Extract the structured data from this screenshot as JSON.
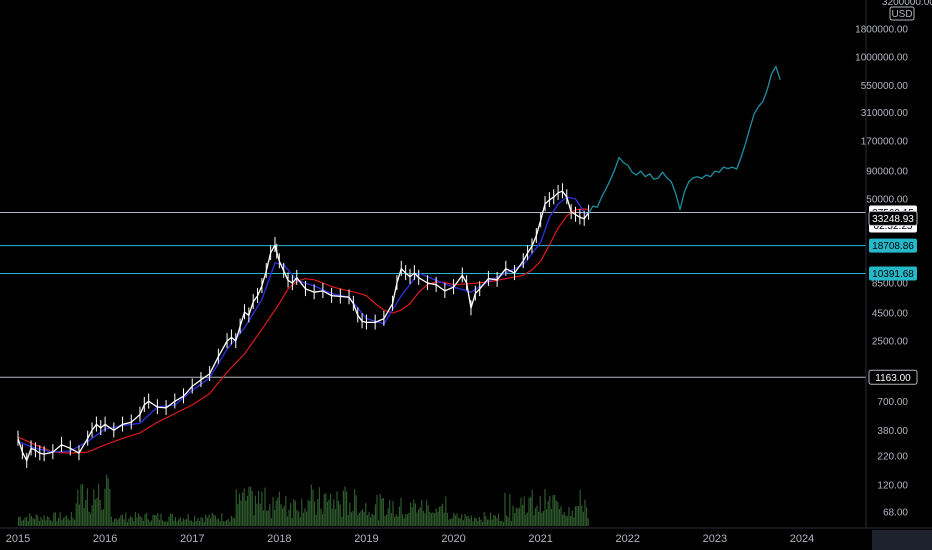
{
  "colors": {
    "background": "#000000",
    "price": "#ffffff",
    "ma_long": "#e0191b",
    "ma_short": "#2a2fd6",
    "projection": "#1f8ea3",
    "level_white": "#b2b5be",
    "level_cyan": "#25b8c9",
    "volume": "#2d5a2b"
  },
  "axis": {
    "currency": "USD",
    "top_clipped_label": "3200000.00"
  },
  "chart_data": {
    "type": "line",
    "title": "",
    "xlabel": "",
    "ylabel": "",
    "y_scale": "log",
    "ylim": [
      50,
      3300000
    ],
    "xlim": [
      2015.0,
      2024.7
    ],
    "x_ticks": [
      "2015",
      "2016",
      "2017",
      "2018",
      "2019",
      "2020",
      "2021",
      "2022",
      "2023",
      "2024"
    ],
    "y_ticks": [
      "1800000.00",
      "1000000.00",
      "550000.00",
      "310000.00",
      "170000.00",
      "90000.00",
      "50000.00",
      "8500.00",
      "4500.00",
      "2500.00",
      "700.00",
      "380.00",
      "220.00",
      "120.00",
      "68.00"
    ],
    "price_labels": [
      {
        "text": "37560.15",
        "value": 37560.15,
        "style": "current"
      },
      {
        "text": "02:52:25",
        "value": 30500,
        "style": "timer"
      },
      {
        "text": "33248.93",
        "value": 33248.93,
        "style": "white"
      },
      {
        "text": "18708.86",
        "value": 18708.86,
        "style": "cyan"
      },
      {
        "text": "10391.68",
        "value": 10391.68,
        "style": "cyan"
      },
      {
        "text": "1163.00",
        "value": 1163.0,
        "style": "white"
      }
    ],
    "horizontal_levels": [
      {
        "value": 37560.15,
        "color": "white"
      },
      {
        "value": 18708.86,
        "color": "cyan"
      },
      {
        "value": 10391.68,
        "color": "cyan"
      },
      {
        "value": 1163.0,
        "color": "white"
      }
    ],
    "series": [
      {
        "role": "price",
        "x": [
          2015.0,
          2015.05,
          2015.1,
          2015.15,
          2015.2,
          2015.25,
          2015.3,
          2015.4,
          2015.5,
          2015.6,
          2015.7,
          2015.8,
          2015.85,
          2015.9,
          2015.95,
          2016.0,
          2016.1,
          2016.2,
          2016.3,
          2016.4,
          2016.45,
          2016.5,
          2016.6,
          2016.7,
          2016.8,
          2016.9,
          2017.0,
          2017.1,
          2017.2,
          2017.3,
          2017.4,
          2017.45,
          2017.5,
          2017.55,
          2017.6,
          2017.65,
          2017.7,
          2017.75,
          2017.8,
          2017.85,
          2017.9,
          2017.95,
          2017.97,
          2018.0,
          2018.05,
          2018.1,
          2018.15,
          2018.2,
          2018.3,
          2018.4,
          2018.5,
          2018.6,
          2018.7,
          2018.8,
          2018.85,
          2018.9,
          2018.95,
          2019.0,
          2019.1,
          2019.2,
          2019.3,
          2019.35,
          2019.4,
          2019.45,
          2019.5,
          2019.55,
          2019.6,
          2019.7,
          2019.8,
          2019.9,
          2020.0,
          2020.1,
          2020.15,
          2020.2,
          2020.25,
          2020.3,
          2020.4,
          2020.5,
          2020.6,
          2020.7,
          2020.8,
          2020.85,
          2020.9,
          2020.95,
          2021.0,
          2021.05,
          2021.1,
          2021.15,
          2021.2,
          2021.25,
          2021.3,
          2021.35,
          2021.4,
          2021.45,
          2021.5,
          2021.55
        ],
        "y": [
          320,
          240,
          200,
          260,
          250,
          235,
          230,
          240,
          280,
          260,
          235,
          320,
          380,
          430,
          400,
          430,
          380,
          430,
          450,
          530,
          650,
          700,
          620,
          610,
          700,
          780,
          960,
          1100,
          1250,
          1800,
          2500,
          2700,
          2500,
          3400,
          4600,
          4300,
          5700,
          6500,
          8000,
          11000,
          16000,
          19000,
          16500,
          13500,
          11000,
          9000,
          8500,
          9500,
          7500,
          7000,
          7200,
          6500,
          6400,
          6300,
          5500,
          4300,
          3800,
          3700,
          3700,
          4000,
          5500,
          8500,
          11500,
          10500,
          9700,
          10500,
          9500,
          8500,
          8200,
          7200,
          7800,
          10000,
          8500,
          5000,
          6800,
          7500,
          9300,
          9100,
          11500,
          10500,
          13500,
          16000,
          18500,
          23000,
          32000,
          45000,
          49000,
          52000,
          57000,
          59000,
          52000,
          38000,
          36000,
          34000,
          33000,
          37560
        ]
      },
      {
        "role": "ma_long",
        "x": [
          2015.0,
          2015.2,
          2015.4,
          2015.6,
          2015.8,
          2016.0,
          2016.2,
          2016.4,
          2016.6,
          2016.8,
          2017.0,
          2017.2,
          2017.4,
          2017.6,
          2017.8,
          2018.0,
          2018.1,
          2018.2,
          2018.3,
          2018.4,
          2018.5,
          2018.6,
          2018.7,
          2018.8,
          2018.9,
          2019.0,
          2019.1,
          2019.2,
          2019.3,
          2019.4,
          2019.5,
          2019.6,
          2019.7,
          2019.8,
          2019.9,
          2020.0,
          2020.2,
          2020.4,
          2020.6,
          2020.8,
          2020.9,
          2021.0,
          2021.1,
          2021.2,
          2021.3,
          2021.4,
          2021.5,
          2021.55
        ],
        "y": [
          330,
          280,
          240,
          235,
          240,
          280,
          320,
          360,
          450,
          540,
          650,
          820,
          1300,
          1900,
          3200,
          5500,
          7500,
          8800,
          9300,
          9100,
          8500,
          7900,
          7500,
          7200,
          6900,
          6500,
          5500,
          4800,
          4500,
          4800,
          5500,
          7000,
          8200,
          8700,
          8600,
          8200,
          8400,
          8700,
          9300,
          10000,
          11200,
          13500,
          19000,
          27000,
          35000,
          40000,
          40500,
          40000
        ]
      },
      {
        "role": "ma_short",
        "x": [
          2015.0,
          2015.2,
          2015.4,
          2015.6,
          2015.8,
          2016.0,
          2016.2,
          2016.4,
          2016.6,
          2016.8,
          2017.0,
          2017.2,
          2017.4,
          2017.6,
          2017.8,
          2017.95,
          2018.05,
          2018.2,
          2018.4,
          2018.6,
          2018.8,
          2019.0,
          2019.2,
          2019.4,
          2019.6,
          2019.8,
          2020.0,
          2020.2,
          2020.4,
          2020.6,
          2020.8,
          2021.0,
          2021.1,
          2021.2,
          2021.3,
          2021.4,
          2021.5,
          2021.55
        ],
        "y": [
          300,
          260,
          240,
          245,
          300,
          390,
          420,
          440,
          620,
          650,
          880,
          1150,
          2100,
          3300,
          6000,
          13000,
          12500,
          9000,
          8000,
          6800,
          6300,
          4000,
          3600,
          6500,
          10500,
          9000,
          7800,
          7000,
          8800,
          10500,
          12500,
          20000,
          34000,
          45000,
          52000,
          50000,
          38000,
          35000
        ]
      },
      {
        "role": "projection",
        "x": [
          2021.55,
          2021.6,
          2021.65,
          2021.7,
          2021.75,
          2021.8,
          2021.85,
          2021.9,
          2021.95,
          2022.0,
          2022.05,
          2022.1,
          2022.15,
          2022.2,
          2022.25,
          2022.3,
          2022.35,
          2022.4,
          2022.45,
          2022.5,
          2022.55,
          2022.6,
          2022.65,
          2022.7,
          2022.75,
          2022.8,
          2022.85,
          2022.9,
          2022.95,
          2023.0,
          2023.05,
          2023.1,
          2023.15,
          2023.2,
          2023.25,
          2023.3,
          2023.35,
          2023.4,
          2023.45,
          2023.5,
          2023.55,
          2023.6,
          2023.65,
          2023.7,
          2023.75
        ],
        "y": [
          37000,
          43000,
          42000,
          52000,
          62000,
          75000,
          93000,
          120000,
          108000,
          102000,
          88000,
          83000,
          90000,
          80000,
          85000,
          76000,
          78000,
          88000,
          78000,
          72000,
          56000,
          40000,
          58000,
          72000,
          78000,
          80000,
          77000,
          83000,
          80000,
          90000,
          88000,
          98000,
          95000,
          98000,
          94000,
          120000,
          160000,
          220000,
          300000,
          350000,
          390000,
          500000,
          700000,
          820000,
          620000
        ]
      }
    ],
    "volume": {
      "x_range": [
        2015.0,
        2021.55
      ],
      "peak_value": 100
    }
  }
}
